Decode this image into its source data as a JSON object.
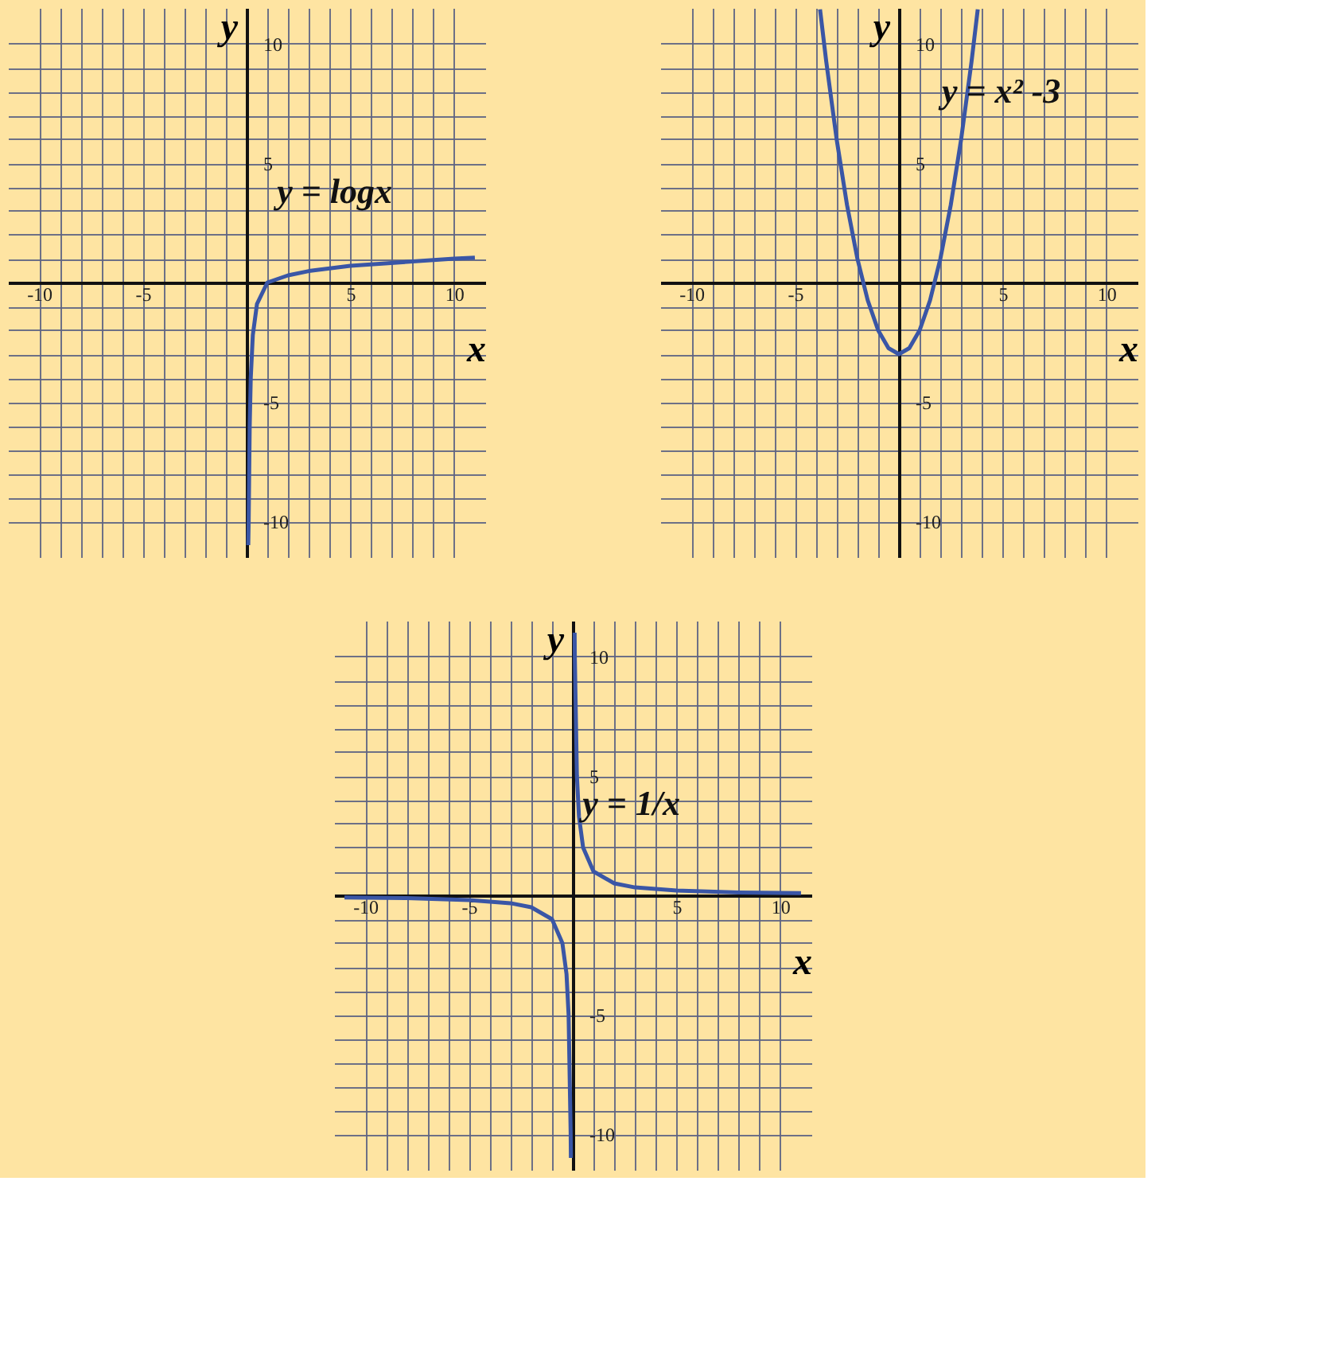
{
  "chart_data": [
    {
      "type": "line",
      "xlabel": "x",
      "ylabel": "y",
      "xlim": [
        -11.5,
        11.5
      ],
      "ylim": [
        -11.5,
        11.5
      ],
      "grid": true,
      "xticks": [
        -10,
        {
          "value": -9,
          "label": null
        },
        {
          "value": -8,
          "label": null
        },
        {
          "value": -7,
          "label": null
        },
        {
          "value": -6,
          "label": null
        },
        -5,
        {
          "value": -4,
          "label": null
        },
        {
          "value": -3,
          "label": null
        },
        {
          "value": -2,
          "label": null
        },
        {
          "value": -1,
          "label": null
        },
        {
          "value": 0,
          "label": null
        },
        {
          "value": 1,
          "label": null
        },
        {
          "value": 2,
          "label": null
        },
        {
          "value": 3,
          "label": null
        },
        {
          "value": 4,
          "label": null
        },
        5,
        {
          "value": 6,
          "label": null
        },
        {
          "value": 7,
          "label": null
        },
        {
          "value": 8,
          "label": null
        },
        {
          "value": 9,
          "label": null
        },
        10
      ],
      "yticks": [
        -10,
        {
          "value": -9,
          "label": null
        },
        {
          "value": -8,
          "label": null
        },
        {
          "value": -7,
          "label": null
        },
        {
          "value": -6,
          "label": null
        },
        -5,
        {
          "value": -4,
          "label": null
        },
        {
          "value": -3,
          "label": null
        },
        {
          "value": -2,
          "label": null
        },
        {
          "value": -1,
          "label": null
        },
        {
          "value": 0,
          "label": null
        },
        {
          "value": 1,
          "label": null
        },
        {
          "value": 2,
          "label": null
        },
        {
          "value": 3,
          "label": null
        },
        {
          "value": 4,
          "label": null
        },
        5,
        {
          "value": 6,
          "label": null
        },
        {
          "value": 7,
          "label": null
        },
        {
          "value": 8,
          "label": null
        },
        {
          "value": 9,
          "label": null
        },
        10
      ],
      "series": [
        {
          "color": "#3a56a6",
          "x": [
            0.08,
            0.1,
            0.15,
            0.2,
            0.3,
            0.5,
            1,
            2,
            3,
            5,
            10,
            11
          ],
          "values": [
            -11,
            -10,
            -6,
            -4,
            -2.2,
            -0.9,
            0,
            0.3,
            0.48,
            0.7,
            1,
            1.04
          ]
        }
      ],
      "annotations": [
        {
          "text": "y = logx",
          "x": 3,
          "y": 0.48
        }
      ]
    },
    {
      "type": "line",
      "xlabel": "x",
      "ylabel": "y",
      "xlim": [
        -11.5,
        11.5
      ],
      "ylim": [
        -11.5,
        11.5
      ],
      "grid": true,
      "xticks": [
        -10,
        {
          "value": -9,
          "label": null
        },
        {
          "value": -8,
          "label": null
        },
        {
          "value": -7,
          "label": null
        },
        {
          "value": -6,
          "label": null
        },
        -5,
        {
          "value": -4,
          "label": null
        },
        {
          "value": -3,
          "label": null
        },
        {
          "value": -2,
          "label": null
        },
        {
          "value": -1,
          "label": null
        },
        {
          "value": 0,
          "label": null
        },
        {
          "value": 1,
          "label": null
        },
        {
          "value": 2,
          "label": null
        },
        {
          "value": 3,
          "label": null
        },
        {
          "value": 4,
          "label": null
        },
        5,
        {
          "value": 6,
          "label": null
        },
        {
          "value": 7,
          "label": null
        },
        {
          "value": 8,
          "label": null
        },
        {
          "value": 9,
          "label": null
        },
        10
      ],
      "yticks": [
        -10,
        {
          "value": -9,
          "label": null
        },
        {
          "value": -8,
          "label": null
        },
        {
          "value": -7,
          "label": null
        },
        {
          "value": -6,
          "label": null
        },
        -5,
        {
          "value": -4,
          "label": null
        },
        {
          "value": -3,
          "label": null
        },
        {
          "value": -2,
          "label": null
        },
        {
          "value": -1,
          "label": null
        },
        {
          "value": 0,
          "label": null
        },
        {
          "value": 1,
          "label": null
        },
        {
          "value": 2,
          "label": null
        },
        {
          "value": 3,
          "label": null
        },
        {
          "value": 4,
          "label": null
        },
        5,
        {
          "value": 6,
          "label": null
        },
        {
          "value": 7,
          "label": null
        },
        {
          "value": 8,
          "label": null
        },
        {
          "value": 9,
          "label": null
        },
        10
      ],
      "series": [
        {
          "color": "#3a56a6",
          "x": [
            -3.8,
            -3.5,
            -3,
            -2.5,
            -2,
            -1.5,
            -1,
            -0.5,
            0,
            0.5,
            1,
            1.5,
            2,
            2.5,
            3,
            3.5,
            3.8
          ],
          "values": [
            11.44,
            9.25,
            6,
            3.25,
            1,
            -0.75,
            -2,
            -2.75,
            -3,
            -2.75,
            -2,
            -0.75,
            1,
            3.25,
            6,
            9.25,
            11.44
          ]
        }
      ],
      "annotations": [
        {
          "text": "y = x² -3",
          "x": 3.6,
          "y": 10
        }
      ]
    },
    {
      "type": "line",
      "xlabel": "x",
      "ylabel": "y",
      "xlim": [
        -11.5,
        11.5
      ],
      "ylim": [
        -11.5,
        11.5
      ],
      "grid": true,
      "xticks": [
        -10,
        {
          "value": -9,
          "label": null
        },
        {
          "value": -8,
          "label": null
        },
        {
          "value": -7,
          "label": null
        },
        {
          "value": -6,
          "label": null
        },
        -5,
        {
          "value": -4,
          "label": null
        },
        {
          "value": -3,
          "label": null
        },
        {
          "value": -2,
          "label": null
        },
        {
          "value": -1,
          "label": null
        },
        {
          "value": 0,
          "label": null
        },
        {
          "value": 1,
          "label": null
        },
        {
          "value": 2,
          "label": null
        },
        {
          "value": 3,
          "label": null
        },
        {
          "value": 4,
          "label": null
        },
        5,
        {
          "value": 6,
          "label": null
        },
        {
          "value": 7,
          "label": null
        },
        {
          "value": 8,
          "label": null
        },
        {
          "value": 9,
          "label": null
        },
        10
      ],
      "yticks": [
        -10,
        {
          "value": -9,
          "label": null
        },
        {
          "value": -8,
          "label": null
        },
        {
          "value": -7,
          "label": null
        },
        {
          "value": -6,
          "label": null
        },
        -5,
        {
          "value": -4,
          "label": null
        },
        {
          "value": -3,
          "label": null
        },
        {
          "value": -2,
          "label": null
        },
        {
          "value": -1,
          "label": null
        },
        {
          "value": 0,
          "label": null
        },
        {
          "value": 1,
          "label": null
        },
        {
          "value": 2,
          "label": null
        },
        {
          "value": 3,
          "label": null
        },
        {
          "value": 4,
          "label": null
        },
        5,
        {
          "value": 6,
          "label": null
        },
        {
          "value": 7,
          "label": null
        },
        {
          "value": 8,
          "label": null
        },
        {
          "value": 9,
          "label": null
        },
        10
      ],
      "series": [
        {
          "color": "#3a56a6",
          "x": [
            -11,
            -8,
            -5,
            -3,
            -2,
            -1,
            -0.5,
            -0.3,
            -0.2,
            -0.1,
            -0.09
          ],
          "values": [
            -0.09,
            -0.12,
            -0.2,
            -0.33,
            -0.5,
            -1,
            -2,
            -3.3,
            -5,
            -10,
            -11
          ]
        },
        {
          "color": "#3a56a6",
          "x": [
            0.09,
            0.1,
            0.2,
            0.3,
            0.5,
            1,
            2,
            3,
            5,
            8,
            11
          ],
          "values": [
            11,
            10,
            5,
            3.3,
            2,
            1,
            0.5,
            0.33,
            0.2,
            0.12,
            0.09
          ]
        }
      ],
      "annotations": [
        {
          "text": "y = 1/x",
          "x": 2,
          "y": 0.5
        }
      ]
    }
  ]
}
